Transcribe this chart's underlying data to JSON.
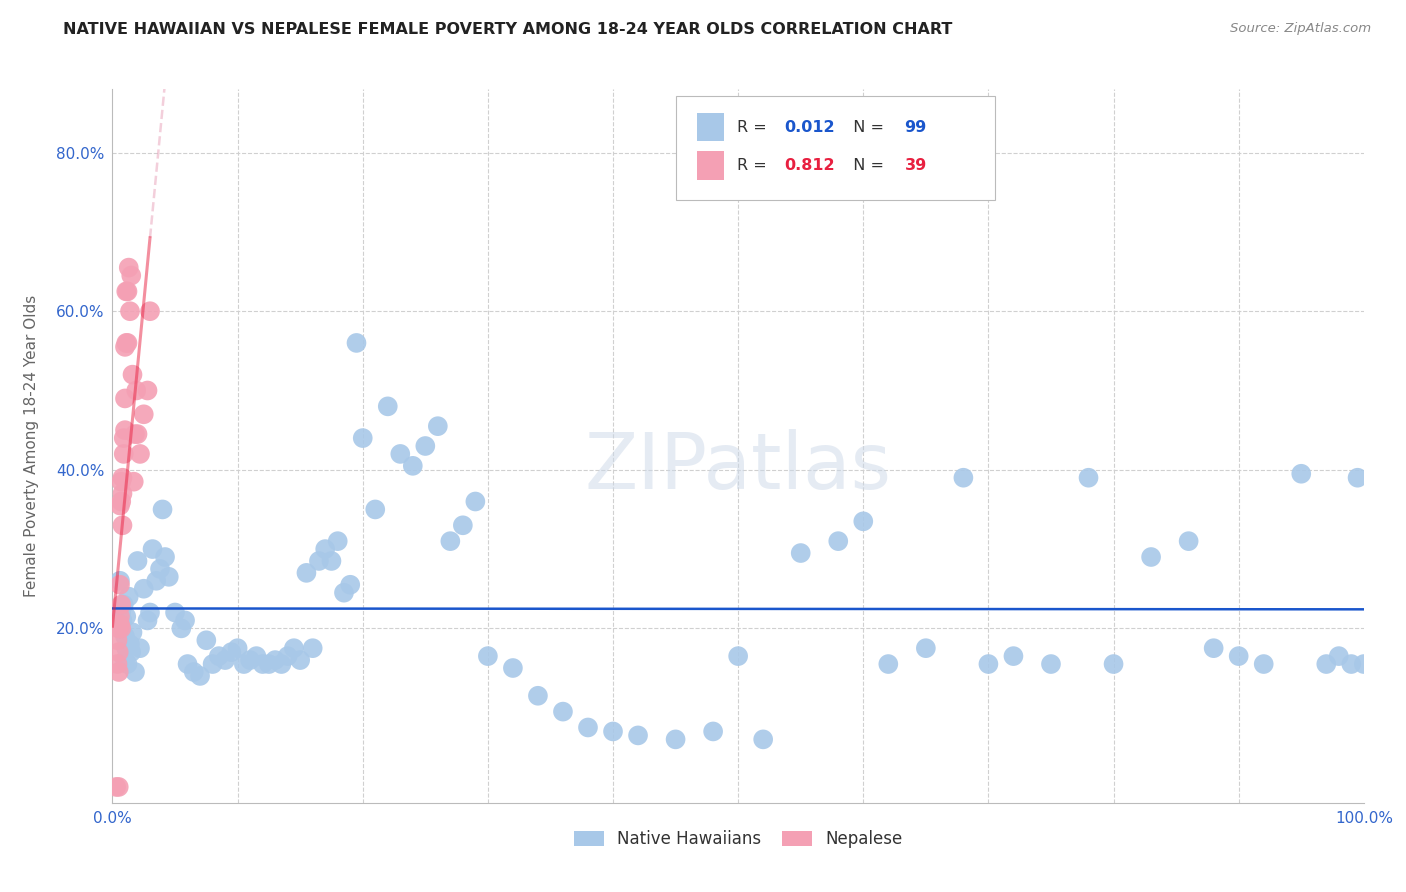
{
  "title": "NATIVE HAWAIIAN VS NEPALESE FEMALE POVERTY AMONG 18-24 YEAR OLDS CORRELATION CHART",
  "source": "Source: ZipAtlas.com",
  "ylabel": "Female Poverty Among 18-24 Year Olds",
  "xlim": [
    0.0,
    1.0
  ],
  "ylim": [
    -0.02,
    0.88
  ],
  "xticks": [
    0.0,
    0.1,
    0.2,
    0.3,
    0.4,
    0.5,
    0.6,
    0.7,
    0.8,
    0.9,
    1.0
  ],
  "xticklabels": [
    "0.0%",
    "",
    "",
    "",
    "",
    "",
    "",
    "",
    "",
    "",
    "100.0%"
  ],
  "yticks": [
    0.0,
    0.2,
    0.4,
    0.6,
    0.8
  ],
  "yticklabels": [
    "",
    "20.0%",
    "40.0%",
    "60.0%",
    "80.0%"
  ],
  "background_color": "#ffffff",
  "grid_color": "#d0d0d0",
  "hawaiian_color": "#a8c8e8",
  "nepalese_color": "#f4a0b4",
  "trendline_hawaiian_color": "#1a56cc",
  "trendline_nepalese_color": "#e8204080",
  "trendline_nepalese_dashed_color": "#e8a0b880",
  "R_hawaiian": 0.012,
  "N_hawaiian": 99,
  "R_nepalese": 0.812,
  "N_nepalese": 39,
  "legend_label_hawaiian": "Native Hawaiians",
  "legend_label_nepalese": "Nepalese",
  "legend_R_color_hawaiian": "#1a56cc",
  "legend_R_color_nepalese": "#e82040",
  "hawaiian_x": [
    0.006,
    0.007,
    0.008,
    0.009,
    0.01,
    0.01,
    0.011,
    0.011,
    0.012,
    0.013,
    0.014,
    0.015,
    0.016,
    0.018,
    0.02,
    0.022,
    0.025,
    0.028,
    0.03,
    0.032,
    0.035,
    0.038,
    0.04,
    0.042,
    0.045,
    0.05,
    0.055,
    0.058,
    0.06,
    0.065,
    0.07,
    0.075,
    0.08,
    0.085,
    0.09,
    0.095,
    0.1,
    0.105,
    0.11,
    0.115,
    0.12,
    0.125,
    0.13,
    0.135,
    0.14,
    0.145,
    0.15,
    0.155,
    0.16,
    0.165,
    0.17,
    0.175,
    0.18,
    0.185,
    0.19,
    0.195,
    0.2,
    0.21,
    0.22,
    0.23,
    0.24,
    0.25,
    0.26,
    0.27,
    0.28,
    0.29,
    0.3,
    0.32,
    0.34,
    0.36,
    0.38,
    0.4,
    0.42,
    0.45,
    0.48,
    0.5,
    0.52,
    0.55,
    0.58,
    0.6,
    0.62,
    0.65,
    0.68,
    0.7,
    0.72,
    0.75,
    0.78,
    0.8,
    0.83,
    0.86,
    0.88,
    0.9,
    0.92,
    0.95,
    0.97,
    0.98,
    0.99,
    0.995,
    1.0
  ],
  "hawaiian_y": [
    0.26,
    0.22,
    0.21,
    0.23,
    0.19,
    0.16,
    0.215,
    0.175,
    0.155,
    0.24,
    0.18,
    0.17,
    0.195,
    0.145,
    0.285,
    0.175,
    0.25,
    0.21,
    0.22,
    0.3,
    0.26,
    0.275,
    0.35,
    0.29,
    0.265,
    0.22,
    0.2,
    0.21,
    0.155,
    0.145,
    0.14,
    0.185,
    0.155,
    0.165,
    0.16,
    0.17,
    0.175,
    0.155,
    0.16,
    0.165,
    0.155,
    0.155,
    0.16,
    0.155,
    0.165,
    0.175,
    0.16,
    0.27,
    0.175,
    0.285,
    0.3,
    0.285,
    0.31,
    0.245,
    0.255,
    0.56,
    0.44,
    0.35,
    0.48,
    0.42,
    0.405,
    0.43,
    0.455,
    0.31,
    0.33,
    0.36,
    0.165,
    0.15,
    0.115,
    0.095,
    0.075,
    0.07,
    0.065,
    0.06,
    0.07,
    0.165,
    0.06,
    0.295,
    0.31,
    0.335,
    0.155,
    0.175,
    0.39,
    0.155,
    0.165,
    0.155,
    0.39,
    0.155,
    0.29,
    0.31,
    0.175,
    0.165,
    0.155,
    0.395,
    0.155,
    0.165,
    0.155,
    0.39,
    0.155
  ],
  "nepalese_x": [
    0.003,
    0.004,
    0.004,
    0.005,
    0.005,
    0.005,
    0.005,
    0.006,
    0.006,
    0.006,
    0.006,
    0.007,
    0.007,
    0.007,
    0.007,
    0.008,
    0.008,
    0.008,
    0.009,
    0.009,
    0.01,
    0.01,
    0.01,
    0.011,
    0.011,
    0.012,
    0.012,
    0.013,
    0.014,
    0.015,
    0.016,
    0.017,
    0.018,
    0.019,
    0.02,
    0.022,
    0.025,
    0.028,
    0.03
  ],
  "nepalese_y": [
    0.0,
    0.155,
    0.185,
    0.0,
    0.145,
    0.2,
    0.17,
    0.205,
    0.215,
    0.255,
    0.355,
    0.2,
    0.23,
    0.36,
    0.385,
    0.33,
    0.37,
    0.39,
    0.42,
    0.44,
    0.45,
    0.49,
    0.555,
    0.56,
    0.625,
    0.56,
    0.625,
    0.655,
    0.6,
    0.645,
    0.52,
    0.385,
    0.445,
    0.5,
    0.445,
    0.42,
    0.47,
    0.5,
    0.6
  ]
}
